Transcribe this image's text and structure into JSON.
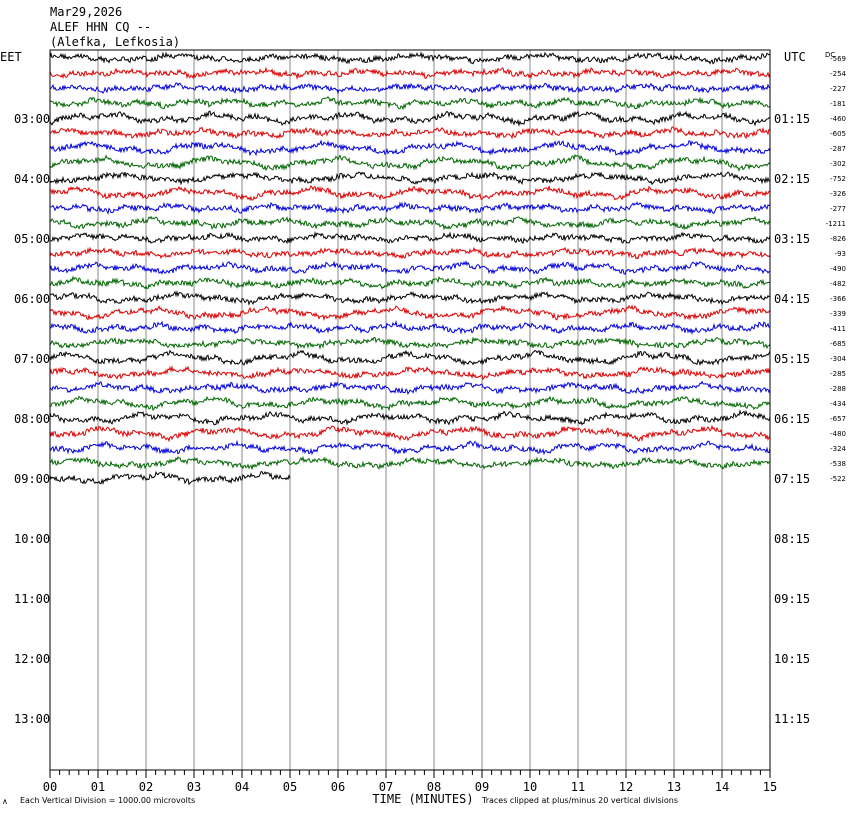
{
  "header": {
    "date": "Mar29,2026",
    "station": "ALEF HHN CQ --",
    "location": "(Alefka, Lefkosia)"
  },
  "left_timezone": "EET",
  "right_timezone": "UTC",
  "dc_label": "DC",
  "footer": {
    "division_note": "Each Vertical Division = 1000.00 microvolts",
    "clip_note": "Traces clipped at plus/minus 20 vertical divisions",
    "corner_mark": "∧"
  },
  "chart_data": {
    "type": "line",
    "title": "",
    "xlabel": "TIME (MINUTES)",
    "ylabel": "",
    "x_ticks": [
      "00",
      "01",
      "02",
      "03",
      "04",
      "05",
      "06",
      "07",
      "08",
      "09",
      "10",
      "11",
      "12",
      "13",
      "14",
      "15"
    ],
    "xlim": [
      0,
      15
    ],
    "left_time_labels": [
      "03:00",
      "04:00",
      "05:00",
      "06:00",
      "07:00",
      "08:00",
      "09:00",
      "10:00",
      "11:00",
      "12:00",
      "13:00"
    ],
    "right_time_labels": [
      "01:15",
      "02:15",
      "03:15",
      "04:15",
      "05:15",
      "06:15",
      "07:15",
      "08:15",
      "09:15",
      "10:15",
      "11:15"
    ],
    "trace_colors": [
      "#000000",
      "#dd0000",
      "#0000dd",
      "#006600"
    ],
    "trace_count": 29,
    "last_trace_end_minute": 5,
    "dc_offsets": [
      "-569",
      "-254",
      "-227",
      "-181",
      "-460",
      "-605",
      "-287",
      "-302",
      "-752",
      "-326",
      "-277",
      "-1211",
      "-826",
      "-93",
      "-490",
      "-482",
      "-366",
      "-339",
      "-411",
      "-685",
      "-304",
      "-285",
      "-288",
      "-434",
      "-657",
      "-480",
      "-324",
      "-538",
      "-522"
    ]
  }
}
